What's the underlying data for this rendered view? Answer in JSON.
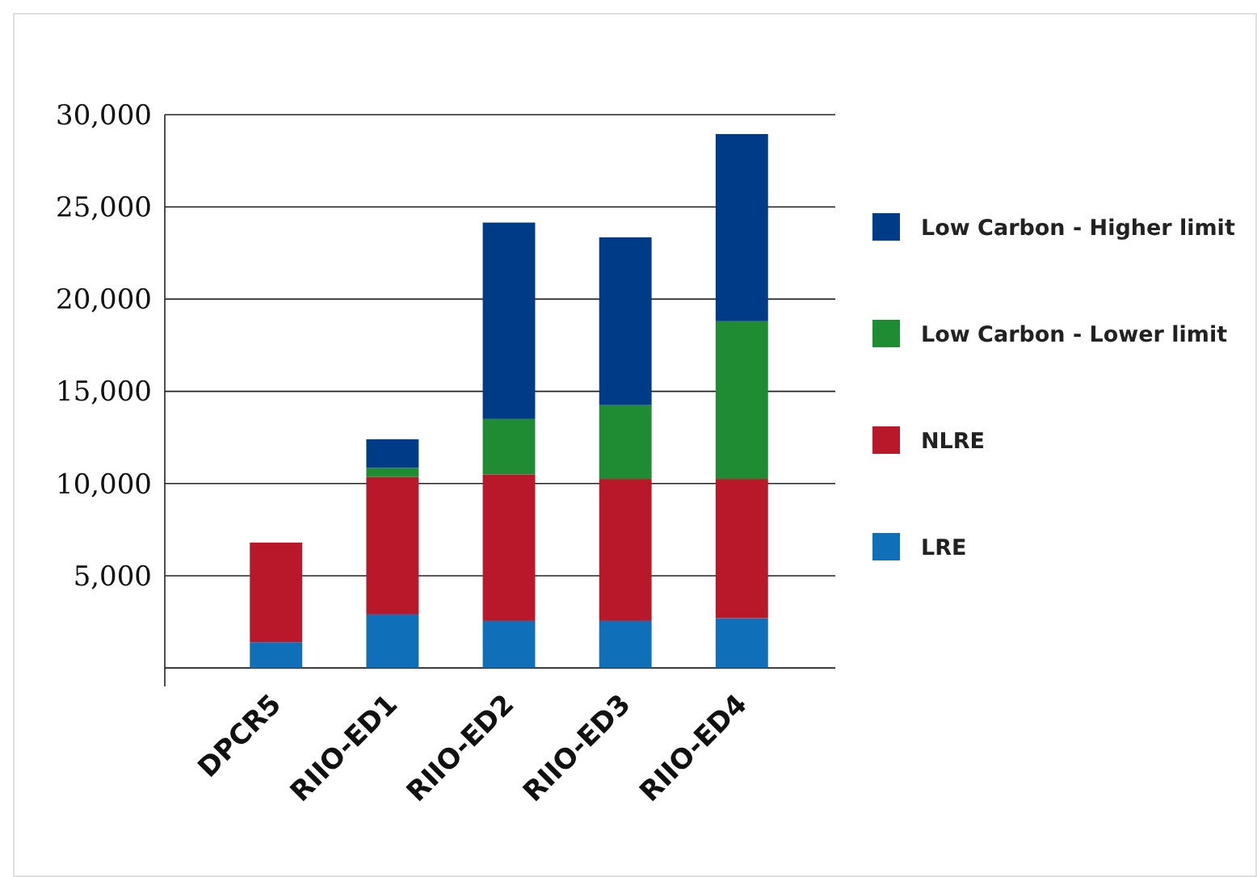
{
  "chart_data": {
    "type": "bar",
    "stacked": true,
    "categories": [
      "DPCR5",
      "RIIO-ED1",
      "RIIO-ED2",
      "RIIO-ED3",
      "RIIO-ED4"
    ],
    "series": [
      {
        "name": "LRE",
        "color": "#0f6fb8",
        "values": [
          1400,
          2900,
          2550,
          2550,
          2700
        ]
      },
      {
        "name": "NLRE",
        "color": "#b8182a",
        "values": [
          5400,
          7450,
          7950,
          7700,
          7550
        ]
      },
      {
        "name": "Low Carbon - Lower limit",
        "color": "#1f8c34",
        "values": [
          null,
          500,
          3000,
          4000,
          8550
        ]
      },
      {
        "name": "Low Carbon - Higher limit",
        "color": "#003b87",
        "values": [
          null,
          1550,
          10650,
          9100,
          10150
        ]
      }
    ],
    "ylim": [
      -1000,
      30000
    ],
    "yticks": [
      {
        "value": 0,
        "label": null
      },
      {
        "value": 5000,
        "label": "5,000"
      },
      {
        "value": 10000,
        "label": "10,000"
      },
      {
        "value": 15000,
        "label": "15,000"
      },
      {
        "value": 20000,
        "label": "20,000"
      },
      {
        "value": 25000,
        "label": "25,000"
      },
      {
        "value": 30000,
        "label": "30,000"
      }
    ],
    "grid": "y",
    "legend": "right"
  }
}
